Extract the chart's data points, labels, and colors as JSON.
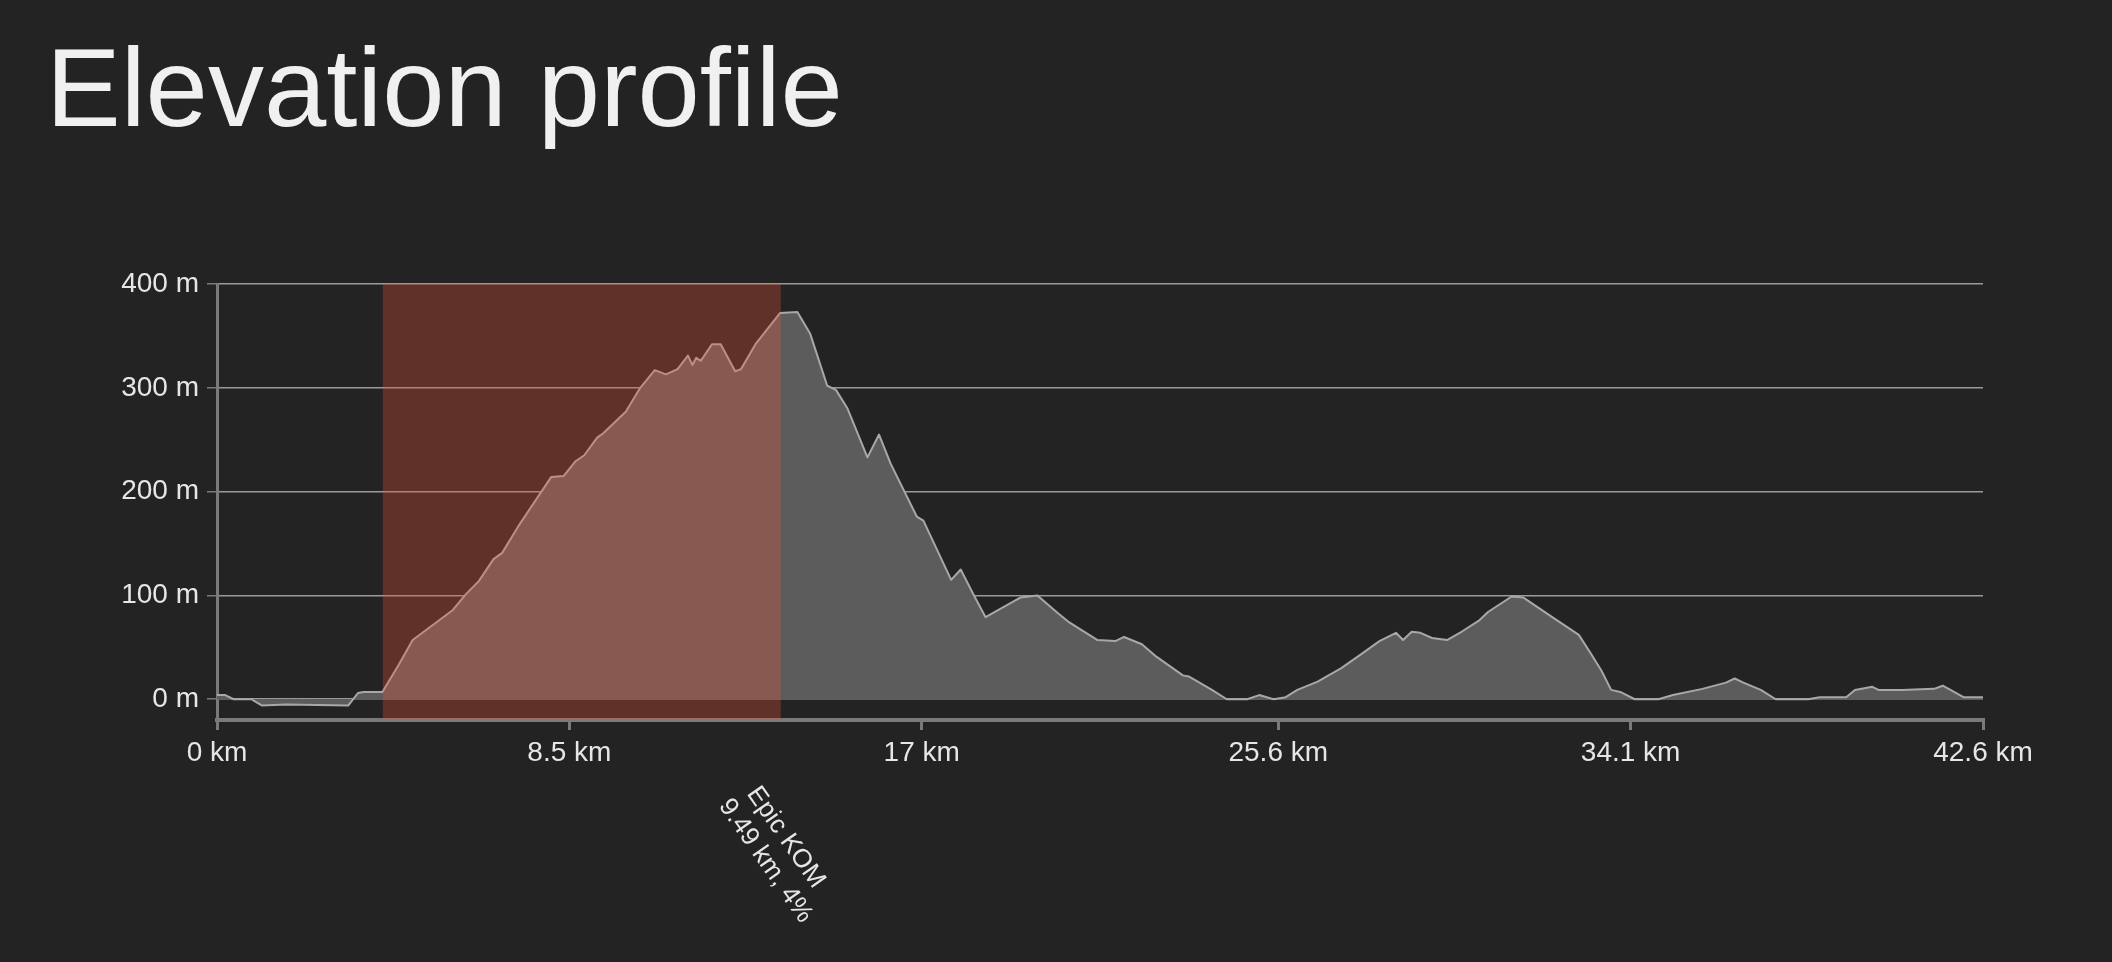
{
  "chart_data": {
    "type": "area",
    "title": "Elevation profile",
    "x": [
      0,
      0.2,
      0.4,
      0.83,
      1.08,
      1.67,
      3.17,
      3.4,
      3.54,
      3.99,
      4.38,
      4.72,
      5.69,
      6.0,
      6.32,
      6.67,
      6.88,
      7.29,
      8.06,
      8.36,
      8.64,
      8.86,
      9.17,
      9.31,
      9.86,
      10.21,
      10.56,
      10.83,
      11.11,
      11.36,
      11.47,
      11.56,
      11.67,
      11.94,
      12.15,
      12.5,
      12.64,
      12.99,
      13.58,
      14.0,
      14.31,
      14.72,
      14.93,
      15.21,
      15.69,
      15.97,
      16.25,
      16.88,
      17.04,
      17.71,
      17.94,
      18.26,
      18.54,
      19.38,
      19.79,
      20.28,
      20.56,
      21.24,
      21.67,
      21.88,
      22.31,
      22.66,
      23.3,
      23.44,
      24.0,
      24.36,
      24.85,
      25.14,
      25.49,
      25.78,
      26.06,
      26.55,
      27.12,
      27.62,
      28.04,
      28.44,
      28.61,
      28.82,
      29.03,
      29.31,
      29.67,
      30.02,
      30.45,
      30.66,
      31.23,
      31.51,
      32.29,
      32.85,
      33.14,
      33.39,
      33.63,
      33.85,
      34.2,
      34.77,
      35.12,
      35.83,
      36.4,
      36.61,
      36.82,
      37.24,
      37.6,
      38.38,
      38.66,
      39.3,
      39.51,
      39.93,
      40.08,
      40.64,
      41.42,
      41.63,
      42.13,
      42.6
    ],
    "values": [
      4,
      4,
      0,
      0,
      -6,
      -5,
      -6,
      6,
      7,
      7,
      33,
      57,
      86,
      101,
      114,
      135,
      141,
      168,
      214,
      215,
      229,
      235,
      252,
      256,
      277,
      300,
      317,
      313,
      318,
      331,
      322,
      329,
      326,
      342,
      342,
      316,
      318,
      342,
      372,
      373,
      352,
      302,
      298,
      280,
      233,
      255,
      227,
      176,
      172,
      115,
      125,
      100,
      79,
      98,
      100,
      83,
      74,
      57,
      56,
      60,
      53,
      41,
      23,
      22,
      9,
      0,
      0,
      4,
      0,
      2,
      9,
      17,
      30,
      44,
      56,
      64,
      57,
      65,
      64,
      59,
      57,
      65,
      76,
      84,
      99,
      98,
      77,
      62,
      44,
      28,
      9,
      7,
      0,
      0,
      4,
      10,
      16,
      20,
      16,
      9,
      0,
      0,
      2,
      2,
      9,
      12,
      9,
      9,
      10,
      13,
      2,
      2
    ],
    "color": "#5c5c5c",
    "marker": "none",
    "grid": "y",
    "xlim": [
      0,
      42.6
    ],
    "xticks": [
      {
        "value": 0,
        "label": "0 km"
      },
      {
        "value": 8.5,
        "label": "8.5 km"
      },
      {
        "value": 17,
        "label": "17 km"
      },
      {
        "value": 25.6,
        "label": "25.6 km"
      },
      {
        "value": 34.1,
        "label": "34.1 km"
      },
      {
        "value": 42.6,
        "label": "42.6 km"
      }
    ],
    "ylim": [
      -20,
      400
    ],
    "yticks": [
      {
        "value": 0,
        "label": "0 m"
      },
      {
        "value": 100,
        "label": "100 m"
      },
      {
        "value": 200,
        "label": "200 m"
      },
      {
        "value": 300,
        "label": "300 m"
      },
      {
        "value": 400,
        "label": "400 m"
      }
    ],
    "bands": [
      {
        "axis": "x",
        "from": 4.0,
        "to": 13.6,
        "label": "Epic KOM\n9.49 km, 4%",
        "color": "#eb5237"
      }
    ]
  }
}
